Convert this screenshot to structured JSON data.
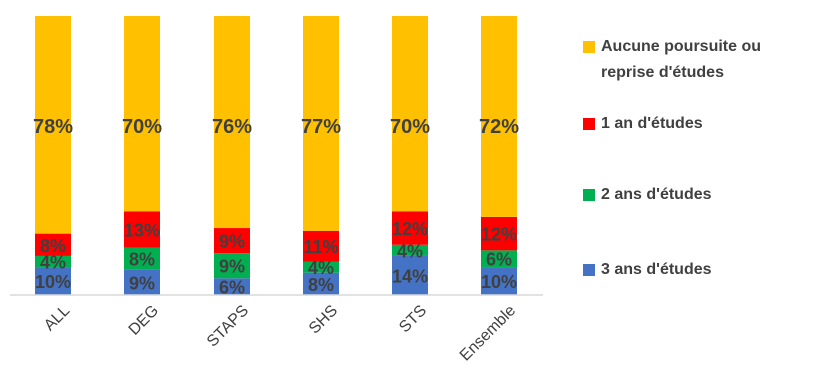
{
  "chart_data": {
    "type": "bar",
    "stacked": true,
    "percent": true,
    "categories": [
      "ALL",
      "DEG",
      "STAPS",
      "SHS",
      "STS",
      "Ensemble"
    ],
    "series": [
      {
        "name": "3 ans d'études",
        "color": "#4472C4",
        "values": [
          10,
          9,
          6,
          8,
          14,
          10
        ]
      },
      {
        "name": "2 ans d'études",
        "color": "#00B050",
        "values": [
          4,
          8,
          9,
          4,
          4,
          6
        ]
      },
      {
        "name": "1 an d'études",
        "color": "#FF0000",
        "values": [
          8,
          13,
          9,
          11,
          12,
          12
        ]
      },
      {
        "name": "Aucune poursuite ou reprise d'études",
        "color": "#FFC000",
        "values": [
          78,
          70,
          76,
          77,
          70,
          72
        ]
      }
    ],
    "legend_order": [
      "Aucune poursuite ou reprise d'études",
      "1 an d'études",
      "2 ans d'études",
      "3 ans d'études"
    ],
    "ylim": [
      0,
      100
    ],
    "legend_position": "right",
    "grid": false,
    "data_labels": true
  }
}
